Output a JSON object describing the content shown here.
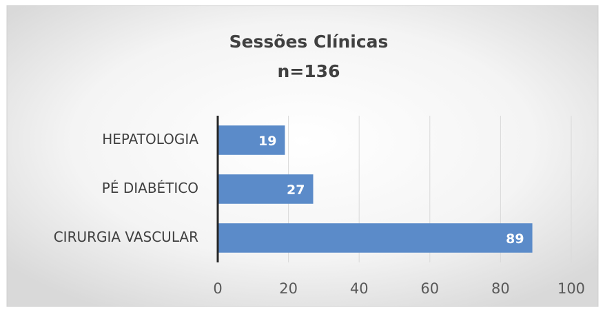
{
  "chart_data": {
    "type": "bar",
    "orientation": "horizontal",
    "title": "Sessões Clínicas",
    "subtitle": "n=136",
    "categories": [
      "HEPATOLOGIA",
      "PÉ DIABÉTICO",
      "CIRURGIA VASCULAR"
    ],
    "values": [
      19,
      27,
      89
    ],
    "color": "#5b8bc9",
    "xlim": [
      0,
      100
    ],
    "xticks": [
      0,
      20,
      40,
      60,
      80,
      100
    ],
    "grid": true
  }
}
